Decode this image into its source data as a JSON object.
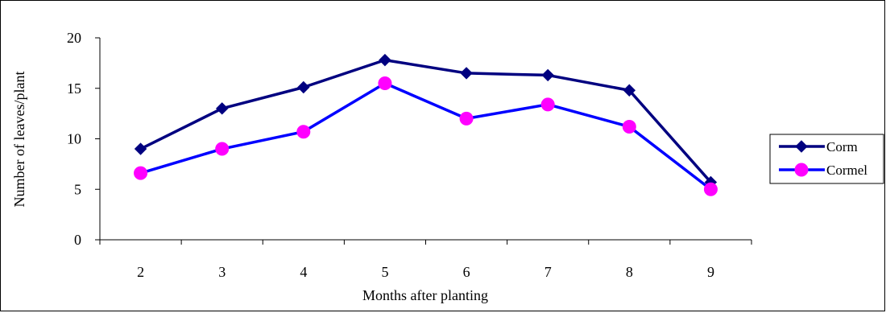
{
  "chart_data": {
    "type": "line",
    "title": "",
    "xlabel": "Months after planting",
    "ylabel": "Number of leaves/plant",
    "categories": [
      "2",
      "3",
      "4",
      "5",
      "6",
      "7",
      "8",
      "9"
    ],
    "ylim": [
      0,
      20
    ],
    "yticks": [
      "0",
      "5",
      "10",
      "15",
      "20"
    ],
    "grid": false,
    "legend": "right",
    "series": [
      {
        "name": "Corm",
        "values": [
          9.0,
          13.0,
          15.1,
          17.8,
          16.5,
          16.3,
          14.8,
          5.7
        ],
        "color": "#000080",
        "marker": "diamond",
        "marker_color": "#000080"
      },
      {
        "name": "Cormel",
        "values": [
          6.6,
          9.0,
          10.7,
          15.5,
          12.0,
          13.4,
          11.2,
          5.0
        ],
        "color": "#0000ff",
        "marker": "circle",
        "marker_color": "#ff00ff"
      }
    ]
  }
}
